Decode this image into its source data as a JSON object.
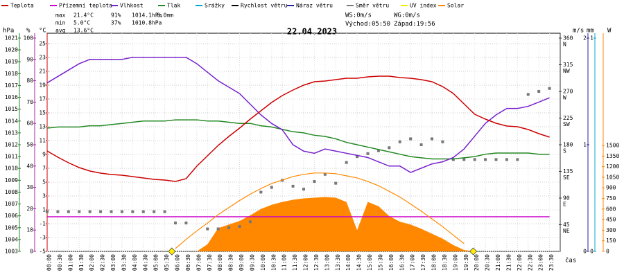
{
  "chart_data": {
    "type": "line",
    "title": "22.04.2023",
    "x_label": "čas",
    "categories": [
      "00:00",
      "00:30",
      "01:00",
      "01:30",
      "02:00",
      "02:30",
      "03:00",
      "03:30",
      "04:00",
      "04:30",
      "05:00",
      "05:30",
      "06:00",
      "06:30",
      "07:00",
      "07:30",
      "08:00",
      "08:30",
      "09:00",
      "09:30",
      "10:00",
      "10:30",
      "11:00",
      "11:30",
      "12:00",
      "12:30",
      "13:00",
      "13:30",
      "14:00",
      "14:30",
      "15:00",
      "15:30",
      "16:00",
      "16:30",
      "17:00",
      "17:30",
      "18:00",
      "18:30",
      "19:00",
      "19:30",
      "20:00",
      "20:30",
      "21:00",
      "21:30",
      "22:00",
      "22:30",
      "23:00",
      "23:30"
    ],
    "axes": [
      {
        "label": "hPa",
        "color": "#228822",
        "lim": [
          1003,
          1021
        ],
        "ticks": [
          1003,
          1004,
          1005,
          1006,
          1007,
          1008,
          1009,
          1010,
          1011,
          1012,
          1013,
          1014,
          1015,
          1016,
          1017,
          1018,
          1019,
          1020,
          1021
        ]
      },
      {
        "label": "%",
        "color": "#aa22aa",
        "lim": [
          0,
          100
        ],
        "ticks": [
          0,
          10,
          20,
          30,
          40,
          50,
          60,
          70,
          80,
          90,
          100
        ]
      },
      {
        "label": "°C",
        "color": "#cc0000",
        "lim": [
          -5,
          25.8
        ],
        "ticks": [
          -5,
          -3,
          -1,
          1,
          3,
          5,
          7,
          9,
          11,
          13,
          15,
          17,
          19,
          21,
          23,
          25
        ],
        "grid": true
      },
      {
        "label": "",
        "color": "#333333",
        "lim": [
          0,
          360
        ],
        "ticks": [
          45,
          90,
          135,
          180,
          225,
          270,
          315,
          360
        ],
        "dir_labels": [
          "NE",
          "E",
          "SE",
          "S",
          "SW",
          "W",
          "NW",
          "N"
        ]
      },
      {
        "label": "m/s",
        "color": "#2222aa",
        "lim": [
          0,
          2
        ],
        "ticks": [
          0,
          1,
          2
        ]
      },
      {
        "label": "mm",
        "color": "#00aacc",
        "lim": [
          0,
          1
        ],
        "ticks": [
          0,
          1
        ]
      },
      {
        "label": "W",
        "color": "#ff8800",
        "lim": [
          0,
          3020
        ],
        "ticks": [
          0,
          150,
          300,
          450,
          600,
          750,
          900,
          1050,
          1200,
          1350,
          1500
        ]
      }
    ],
    "series": [
      {
        "name": "Teplota",
        "color": "#cc0000",
        "axis": "°C",
        "style": "line",
        "values": [
          9.5,
          8.6,
          7.8,
          7.1,
          6.6,
          6.3,
          6.1,
          6.0,
          5.8,
          5.6,
          5.4,
          5.3,
          5.1,
          5.5,
          7.3,
          8.8,
          10.3,
          11.6,
          12.8,
          14.1,
          15.3,
          16.5,
          17.5,
          18.3,
          19.0,
          19.5,
          19.6,
          19.8,
          20.0,
          20.0,
          20.2,
          20.3,
          20.3,
          20.1,
          20.0,
          19.8,
          19.5,
          18.8,
          17.8,
          16.3,
          14.8,
          14.1,
          13.5,
          13.1,
          13.0,
          12.6,
          12.0,
          11.5
        ]
      },
      {
        "name": "Přízemní teplota",
        "color": "#cc00cc",
        "axis": "°C",
        "style": "line",
        "values": [
          0,
          0,
          0,
          0,
          0,
          0,
          0,
          0,
          0,
          0,
          0,
          0,
          0,
          0,
          0,
          0,
          0,
          0,
          0,
          0,
          0,
          0,
          0,
          0,
          0,
          0,
          0,
          0,
          0,
          0,
          0,
          0,
          0,
          0,
          0,
          0,
          0,
          0,
          0,
          0,
          0,
          0,
          0,
          0,
          0,
          0,
          0,
          0
        ]
      },
      {
        "name": "Vlhkost",
        "color": "#7722cc",
        "axis": "%",
        "style": "line",
        "values": [
          79,
          82,
          85,
          88,
          90,
          90,
          90,
          90,
          91,
          91,
          91,
          91,
          91,
          91,
          88,
          84,
          80,
          77,
          74,
          69,
          64,
          60,
          57,
          50,
          47,
          46,
          48,
          47,
          46,
          45,
          44,
          42,
          40,
          40,
          37,
          39,
          41,
          42,
          44,
          48,
          54,
          60,
          64,
          67,
          67,
          68,
          70,
          72
        ]
      },
      {
        "name": "Tlak",
        "color": "#228822",
        "axis": "hPa",
        "style": "line",
        "values": [
          1013.4,
          1013.5,
          1013.5,
          1013.5,
          1013.6,
          1013.6,
          1013.7,
          1013.8,
          1013.9,
          1014.0,
          1014.0,
          1014.0,
          1014.1,
          1014.1,
          1014.1,
          1014.0,
          1014.0,
          1013.9,
          1013.8,
          1013.8,
          1013.6,
          1013.5,
          1013.3,
          1013.1,
          1013.0,
          1012.8,
          1012.7,
          1012.5,
          1012.2,
          1012.0,
          1011.8,
          1011.6,
          1011.4,
          1011.2,
          1011.0,
          1010.9,
          1010.8,
          1010.8,
          1010.8,
          1010.9,
          1011.0,
          1011.2,
          1011.3,
          1011.3,
          1011.3,
          1011.3,
          1011.2,
          1011.2
        ]
      },
      {
        "name": "Srážky",
        "color": "#00aacc"
      },
      {
        "name": "Rychlost větru",
        "color": "#000000"
      },
      {
        "name": "Náraz větru",
        "color": "#2222aa"
      },
      {
        "name": "Směr větru",
        "color": "#777777",
        "axis": "",
        "style": "points",
        "values": [
          67,
          67,
          67,
          67,
          67,
          67,
          67,
          67,
          67,
          67,
          67,
          67,
          48,
          48,
          null,
          38,
          38,
          40,
          42,
          50,
          100,
          108,
          120,
          110,
          105,
          118,
          130,
          115,
          150,
          160,
          165,
          170,
          175,
          185,
          190,
          180,
          190,
          185,
          155,
          155,
          155,
          155,
          155,
          155,
          155,
          265,
          270,
          275
        ]
      },
      {
        "name": "UV index",
        "color": "#eeee00"
      },
      {
        "name": "Solar",
        "color": "#ff8800",
        "axis": "W",
        "style": "area",
        "values": [
          0,
          0,
          0,
          0,
          0,
          0,
          0,
          0,
          0,
          0,
          0,
          0,
          0,
          0,
          0,
          100,
          330,
          380,
          430,
          510,
          600,
          660,
          700,
          730,
          750,
          760,
          770,
          760,
          700,
          300,
          700,
          640,
          500,
          420,
          380,
          320,
          250,
          180,
          90,
          20,
          0,
          0,
          0,
          0,
          0,
          0,
          0,
          0
        ]
      }
    ],
    "solar_max": {
      "color": "#ff8800",
      "axis": "W",
      "values": [
        null,
        null,
        null,
        null,
        null,
        null,
        null,
        null,
        null,
        null,
        null,
        null,
        40,
        170,
        290,
        400,
        520,
        620,
        720,
        810,
        890,
        960,
        1010,
        1060,
        1090,
        1110,
        1110,
        1100,
        1070,
        1040,
        990,
        930,
        850,
        770,
        670,
        570,
        460,
        350,
        230,
        110,
        null,
        null,
        null,
        null,
        null,
        null,
        null,
        null
      ]
    },
    "stats": [
      {
        "label": "max",
        "color": "#cc0000",
        "items": [
          "21.4°C",
          "91%",
          "1014.1hPa",
          "0.0mm"
        ]
      },
      {
        "label": "min",
        "color": "#2222aa",
        "items": [
          "5.0°C",
          "37%",
          "1010.8hPa"
        ]
      },
      {
        "label": "avg",
        "color": "#333333",
        "items": [
          "13.6°C"
        ]
      }
    ],
    "ws": "WS:0m/s",
    "wg": "WG:0m/s",
    "sunrise": {
      "label": "Východ:",
      "time": "05:50"
    },
    "sunset": {
      "label": "Západ:",
      "time": "19:56"
    }
  }
}
